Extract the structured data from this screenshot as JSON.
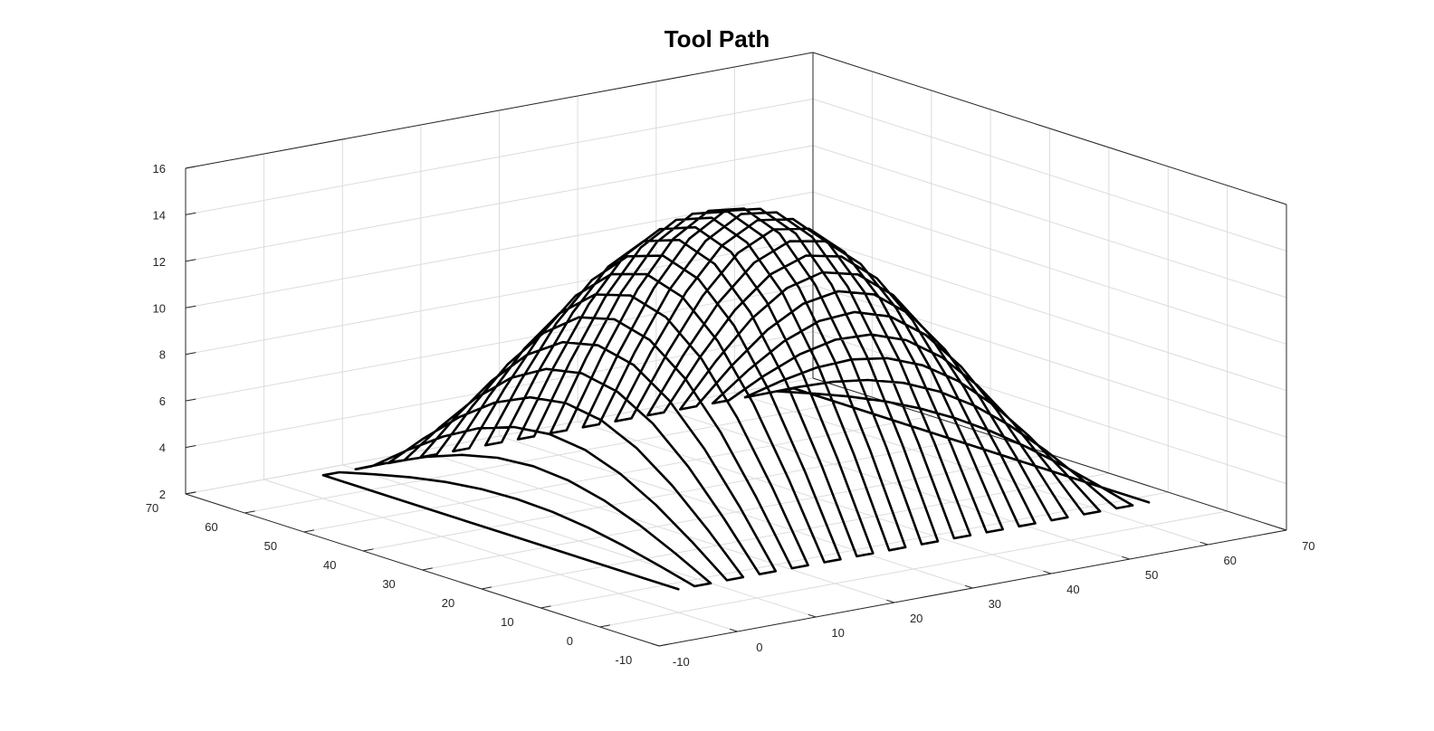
{
  "chart_data": {
    "type": "line3d",
    "title": "Tool Path",
    "xlabel": "",
    "ylabel": "",
    "zlabel": "",
    "xlim": [
      -10,
      70
    ],
    "ylim": [
      -10,
      70
    ],
    "zlim": [
      2,
      16
    ],
    "xticks": [
      -10,
      0,
      10,
      20,
      30,
      40,
      50,
      60,
      70
    ],
    "yticks": [
      -10,
      0,
      10,
      20,
      30,
      40,
      50,
      60,
      70
    ],
    "zticks": [
      2,
      4,
      6,
      8,
      10,
      12,
      14,
      16
    ],
    "grid": true,
    "line_color": "#000000",
    "surface": {
      "description_of_toolpath": "zig-zag passes over a dome surface z = 3 + 12*sin(pi*x/60)*sin(pi*y/60)",
      "x_range": [
        0,
        60
      ],
      "y_range": [
        0,
        60
      ],
      "passes": 30,
      "points_per_pass": 11,
      "z_base": 3,
      "z_amplitude": 12
    }
  }
}
